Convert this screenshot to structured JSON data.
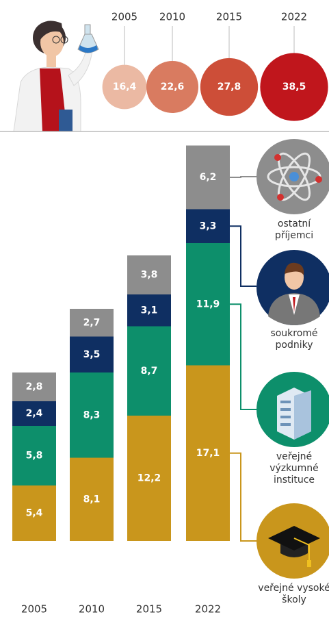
{
  "chart_data": [
    {
      "type": "bubble",
      "categories": [
        "2005",
        "2010",
        "2015",
        "2022"
      ],
      "values": [
        16.4,
        22.6,
        27.8,
        38.5
      ],
      "value_labels": [
        "16,4",
        "22,6",
        "27,8",
        "38,5"
      ],
      "colors": [
        "#ebb9a3",
        "#d97b60",
        "#cd4e38",
        "#c0161c"
      ]
    },
    {
      "type": "stacked-bar",
      "categories": [
        "2005",
        "2010",
        "2015",
        "2022"
      ],
      "series": [
        {
          "name": "veřejné vysoké školy",
          "color": "#c9961c",
          "values": [
            5.4,
            8.1,
            12.2,
            17.1
          ],
          "value_labels": [
            "5,4",
            "8,1",
            "12,2",
            "17,1"
          ]
        },
        {
          "name": "veřejné výzkumné instituce",
          "color": "#0d8f6b",
          "values": [
            5.8,
            8.3,
            8.7,
            11.9
          ],
          "value_labels": [
            "5,8",
            "8,3",
            "8,7",
            "11,9"
          ]
        },
        {
          "name": "soukromé podniky",
          "color": "#0f2f62",
          "values": [
            2.4,
            3.5,
            3.1,
            3.3
          ],
          "value_labels": [
            "2,4",
            "3,5",
            "3,1",
            "3,3"
          ]
        },
        {
          "name": "ostatní příjemci",
          "color": "#8d8d8d",
          "values": [
            2.8,
            2.7,
            3.8,
            6.2
          ],
          "value_labels": [
            "2,8",
            "2,7",
            "3,8",
            "6,2"
          ]
        }
      ]
    }
  ]
}
